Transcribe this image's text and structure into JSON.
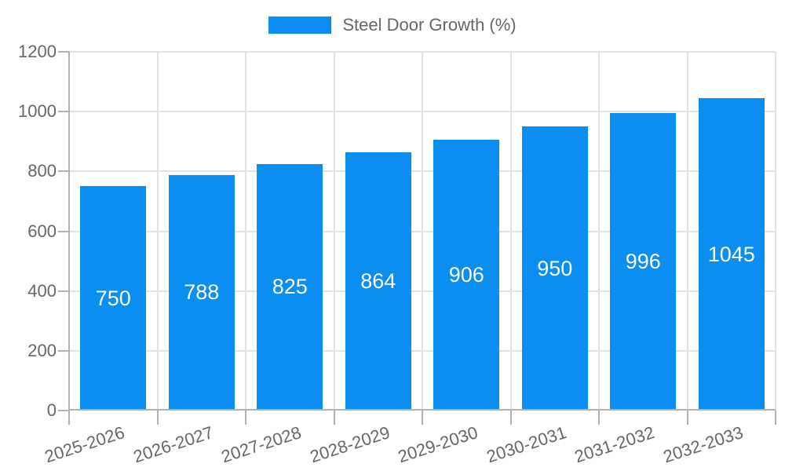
{
  "chart_data": {
    "type": "bar",
    "title": "",
    "legend_label": "Steel Door Growth (%)",
    "legend_position": "top",
    "categories": [
      "2025-2026",
      "2026-2027",
      "2027-2028",
      "2028-2029",
      "2029-2030",
      "2030-2031",
      "2031-2032",
      "2032-2033"
    ],
    "values": [
      750,
      788,
      825,
      864,
      906,
      950,
      996,
      1045
    ],
    "value_label_placement": "inside-center",
    "xlabel": "",
    "ylabel": "",
    "ylim": [
      0,
      1200
    ],
    "yticks": [
      0,
      200,
      400,
      600,
      800,
      1000,
      1200
    ],
    "grid": true,
    "colors": {
      "bar": "#0a8ef2",
      "value_label": "#ffffff",
      "axis_text": "#666666",
      "grid_line": "#e3e3e3",
      "axis_line": "#b1b1b1",
      "tick_mark": "#b1b1b1",
      "background": "#ffffff"
    }
  }
}
